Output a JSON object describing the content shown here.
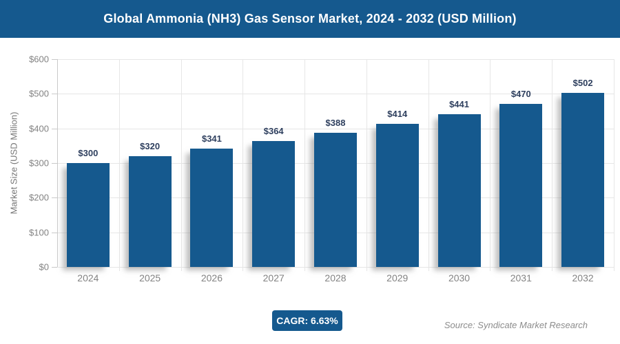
{
  "header": {
    "title": "Global Ammonia (NH3) Gas Sensor Market, 2024 - 2032 (USD Million)"
  },
  "chart_data": {
    "type": "bar",
    "title": "Global Ammonia (NH3) Gas Sensor Market, 2024 - 2032 (USD Million)",
    "categories": [
      "2024",
      "2025",
      "2026",
      "2027",
      "2028",
      "2029",
      "2030",
      "2031",
      "2032"
    ],
    "values": [
      300,
      320,
      341,
      364,
      388,
      414,
      441,
      470,
      502
    ],
    "bar_labels": [
      "$300",
      "$320",
      "$341",
      "$364",
      "$388",
      "$414",
      "$441",
      "$470",
      "$502"
    ],
    "xlabel": "",
    "ylabel": "Market Size (USD Million)",
    "ylim": [
      0,
      600
    ],
    "ytick_values": [
      0,
      100,
      200,
      300,
      400,
      500,
      600
    ],
    "ytick_labels": [
      "$0",
      "$100",
      "$200",
      "$300",
      "$400",
      "$500",
      "$600"
    ],
    "grid": true,
    "legend_position": "none",
    "bar_color": "#15598e",
    "value_label_color": "#2e3f5e"
  },
  "footer": {
    "cagr_label": "CAGR: 6.63%",
    "source": "Source: Syndicate Market Research"
  },
  "colors": {
    "accent_blue": "#15598e",
    "gridline": "#e6e6e6",
    "axis_line": "#c9c9c9",
    "axis_text": "#828282",
    "source_text": "#8c8c8c"
  }
}
